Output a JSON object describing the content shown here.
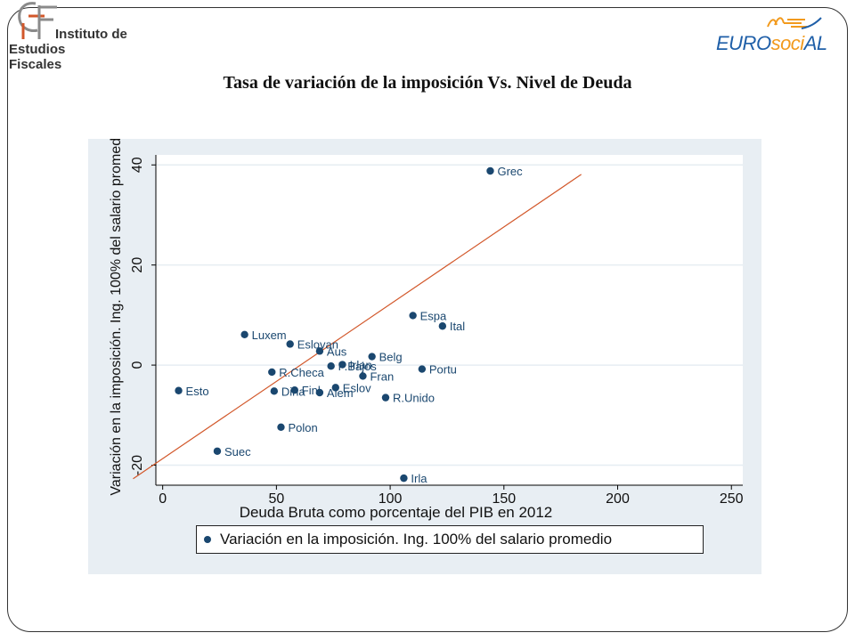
{
  "header": {
    "logo_left_line1": "Instituto de",
    "logo_left_line2": "Estudios Fiscales",
    "logo_right_part1": "EURO",
    "logo_right_part2": "soci",
    "logo_right_part3": "AL"
  },
  "title": "Tasa de variación de la imposición Vs. Nivel de Deuda",
  "colors": {
    "point": "#1a476f",
    "fit_line": "#d2572a",
    "panel_bg": "#e8eef3",
    "logo_orange": "#f29a1d",
    "logo_blue": "#1f5fa8"
  },
  "chart_data": {
    "type": "scatter",
    "xlabel": "Deuda Bruta como porcentaje del PIB en 2012",
    "ylabel": "Variación en la imposición. Ing. 100% del salario promedio",
    "xlim": [
      -3,
      255
    ],
    "ylim": [
      -24,
      42
    ],
    "x_ticks": [
      0,
      50,
      100,
      150,
      200,
      250
    ],
    "y_ticks": [
      -20,
      0,
      20,
      40
    ],
    "grid": true,
    "legend_position": "bottom",
    "series": [
      {
        "name": "Variación en la imposición. Ing. 100% del salario promedio",
        "points": [
          {
            "label": "Grec",
            "x": 144,
            "y": 38.8
          },
          {
            "label": "Espa",
            "x": 110,
            "y": 9.9
          },
          {
            "label": "Ital",
            "x": 123,
            "y": 7.8
          },
          {
            "label": "Luxem",
            "x": 36,
            "y": 6.1
          },
          {
            "label": "Eslovan",
            "x": 56,
            "y": 4.2
          },
          {
            "label": "Aus",
            "x": 69,
            "y": 2.8
          },
          {
            "label": "Belg",
            "x": 92,
            "y": 1.7
          },
          {
            "label": "Irlan",
            "x": 79,
            "y": 0.1
          },
          {
            "label": "P.Bajos",
            "x": 74,
            "y": -0.2
          },
          {
            "label": "R.Checa",
            "x": 48,
            "y": -1.4
          },
          {
            "label": "Portu",
            "x": 114,
            "y": -0.8
          },
          {
            "label": "Fran",
            "x": 88,
            "y": -2.2
          },
          {
            "label": "Esto",
            "x": 7,
            "y": -5.1
          },
          {
            "label": "Dina",
            "x": 49,
            "y": -5.2
          },
          {
            "label": "Finl",
            "x": 58,
            "y": -5.0
          },
          {
            "label": "Alem",
            "x": 69,
            "y": -5.5
          },
          {
            "label": "Eslov",
            "x": 76,
            "y": -4.5
          },
          {
            "label": "R.Unido",
            "x": 98,
            "y": -6.5
          },
          {
            "label": "Polon",
            "x": 52,
            "y": -12.4
          },
          {
            "label": "Suec",
            "x": 24,
            "y": -17.2
          },
          {
            "label": "Irla",
            "x": 106,
            "y": -22.6
          }
        ]
      }
    ],
    "fit_line": {
      "x": [
        -13,
        184
      ],
      "y": [
        -22.7,
        38.1
      ]
    }
  }
}
